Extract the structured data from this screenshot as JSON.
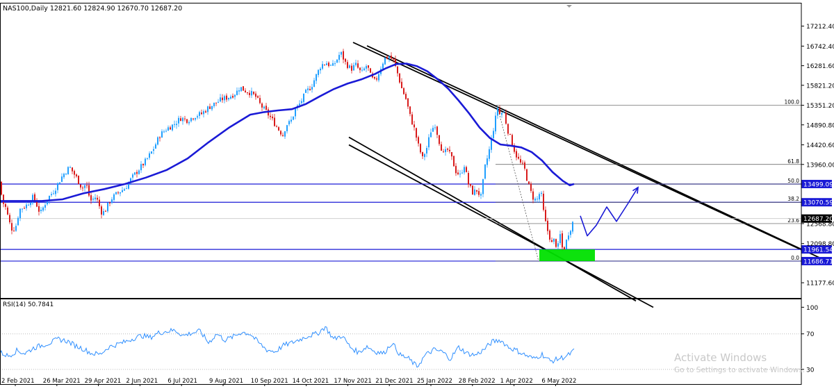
{
  "header": {
    "symbol_line": "NAS100,Daily  12821.60 12824.90 12670.70 12687.20"
  },
  "rsi_header": "RSI(14) 50.7841",
  "watermark": {
    "title": "Activate Windows",
    "subtitle": "Go to Settings to activate Windows."
  },
  "colors": {
    "background": "#ffffff",
    "candle_up": "#1f9fff",
    "candle_down": "#d81b1b",
    "moving_average": "#1a1ad6",
    "level_line": "#1a1ad6",
    "fib_line": "#000000",
    "channel": "#000000",
    "projection": "#1a1ad6",
    "support_zone": "#00e000",
    "rsi_line": "#2f8fff",
    "price_label": "#000000",
    "level_label_bg": "#1a1ad6"
  },
  "chart_data": [
    {
      "type": "candlestick",
      "symbol": "NAS100",
      "timeframe": "Daily",
      "ohlc_current": {
        "open": 12821.6,
        "high": 12824.9,
        "low": 12670.7,
        "close": 12687.2
      },
      "ylim": [
        11000,
        17500
      ],
      "y_ticks": [
        17212.4,
        16742.4,
        16281.6,
        15821.2,
        15351.2,
        14890.8,
        14420.6,
        13960.0,
        12568.8,
        12098.8,
        11177.6
      ],
      "x_ticks": [
        "2 Feb 2021",
        "26 Mar 2021",
        "29 Apr 2021",
        "2 Jun 2021",
        "6 Jul 2021",
        "9 Aug 2021",
        "10 Sep 2021",
        "14 Oct 2021",
        "17 Nov 2021",
        "21 Dec 2021",
        "25 Jan 2022",
        "28 Feb 2022",
        "1 Apr 2022",
        "6 May 2022"
      ],
      "price_path": [
        [
          0,
          13550
        ],
        [
          3,
          13100
        ],
        [
          8,
          12950
        ],
        [
          16,
          12450
        ],
        [
          22,
          12450
        ],
        [
          28,
          12900
        ],
        [
          38,
          13000
        ],
        [
          48,
          13200
        ],
        [
          58,
          12800
        ],
        [
          68,
          13150
        ],
        [
          78,
          13350
        ],
        [
          90,
          13700
        ],
        [
          100,
          13900
        ],
        [
          110,
          13650
        ],
        [
          118,
          13400
        ],
        [
          124,
          13500
        ],
        [
          130,
          13100
        ],
        [
          138,
          13200
        ],
        [
          147,
          12800
        ],
        [
          152,
          12900
        ],
        [
          160,
          13150
        ],
        [
          170,
          13300
        ],
        [
          180,
          13400
        ],
        [
          190,
          13650
        ],
        [
          200,
          13850
        ],
        [
          210,
          14050
        ],
        [
          220,
          14300
        ],
        [
          230,
          14650
        ],
        [
          240,
          14800
        ],
        [
          250,
          14900
        ],
        [
          260,
          15050
        ],
        [
          270,
          15000
        ],
        [
          280,
          15100
        ],
        [
          290,
          15150
        ],
        [
          300,
          15300
        ],
        [
          310,
          15400
        ],
        [
          320,
          15500
        ],
        [
          330,
          15550
        ],
        [
          340,
          15650
        ],
        [
          345,
          15780
        ],
        [
          352,
          15700
        ],
        [
          360,
          15650
        ],
        [
          368,
          15550
        ],
        [
          375,
          15350
        ],
        [
          383,
          15200
        ],
        [
          392,
          15000
        ],
        [
          400,
          14800
        ],
        [
          407,
          14650
        ],
        [
          412,
          14900
        ],
        [
          418,
          14950
        ],
        [
          425,
          15250
        ],
        [
          432,
          15400
        ],
        [
          440,
          15650
        ],
        [
          448,
          15800
        ],
        [
          455,
          16050
        ],
        [
          462,
          16300
        ],
        [
          470,
          16350
        ],
        [
          478,
          16250
        ],
        [
          484,
          16400
        ],
        [
          490,
          16600
        ],
        [
          497,
          16350
        ],
        [
          505,
          16200
        ],
        [
          512,
          16300
        ],
        [
          520,
          16100
        ],
        [
          528,
          16300
        ],
        [
          534,
          16000
        ],
        [
          540,
          15900
        ],
        [
          547,
          16200
        ],
        [
          553,
          16450
        ],
        [
          560,
          16500
        ],
        [
          566,
          16400
        ],
        [
          572,
          16100
        ],
        [
          578,
          15750
        ],
        [
          584,
          15500
        ],
        [
          590,
          15100
        ],
        [
          596,
          14800
        ],
        [
          602,
          14400
        ],
        [
          608,
          14100
        ],
        [
          614,
          14350
        ],
        [
          620,
          14750
        ],
        [
          626,
          14900
        ],
        [
          632,
          14500
        ],
        [
          638,
          14200
        ],
        [
          644,
          14300
        ],
        [
          650,
          14100
        ],
        [
          656,
          13800
        ],
        [
          662,
          13700
        ],
        [
          668,
          13950
        ],
        [
          674,
          13500
        ],
        [
          680,
          13300
        ],
        [
          686,
          13350
        ],
        [
          692,
          13200
        ],
        [
          698,
          13900
        ],
        [
          704,
          14300
        ],
        [
          710,
          14800
        ],
        [
          716,
          15300
        ],
        [
          720,
          15100
        ],
        [
          724,
          15250
        ],
        [
          730,
          14800
        ],
        [
          736,
          14500
        ],
        [
          742,
          14200
        ],
        [
          748,
          14000
        ],
        [
          754,
          13900
        ],
        [
          760,
          13500
        ],
        [
          766,
          13200
        ],
        [
          772,
          13100
        ],
        [
          778,
          13350
        ],
        [
          782,
          12850
        ],
        [
          786,
          12500
        ],
        [
          790,
          12300
        ],
        [
          794,
          12100
        ],
        [
          798,
          12200
        ],
        [
          802,
          11950
        ],
        [
          806,
          12300
        ],
        [
          810,
          11900
        ],
        [
          814,
          12100
        ],
        [
          818,
          12350
        ],
        [
          822,
          12500
        ],
        [
          826,
          12687
        ]
      ],
      "moving_average_path": [
        [
          0,
          13100
        ],
        [
          30,
          13100
        ],
        [
          60,
          13100
        ],
        [
          90,
          13140
        ],
        [
          120,
          13280
        ],
        [
          150,
          13380
        ],
        [
          180,
          13500
        ],
        [
          210,
          13650
        ],
        [
          240,
          13830
        ],
        [
          270,
          14100
        ],
        [
          300,
          14480
        ],
        [
          330,
          14830
        ],
        [
          360,
          15130
        ],
        [
          380,
          15190
        ],
        [
          400,
          15230
        ],
        [
          420,
          15260
        ],
        [
          440,
          15380
        ],
        [
          460,
          15560
        ],
        [
          480,
          15730
        ],
        [
          500,
          15860
        ],
        [
          520,
          15960
        ],
        [
          540,
          16090
        ],
        [
          555,
          16220
        ],
        [
          570,
          16320
        ],
        [
          585,
          16330
        ],
        [
          600,
          16270
        ],
        [
          615,
          16150
        ],
        [
          630,
          15960
        ],
        [
          645,
          15740
        ],
        [
          660,
          15460
        ],
        [
          675,
          15160
        ],
        [
          690,
          14830
        ],
        [
          705,
          14580
        ],
        [
          720,
          14430
        ],
        [
          735,
          14400
        ],
        [
          750,
          14360
        ],
        [
          765,
          14250
        ],
        [
          780,
          14050
        ],
        [
          795,
          13780
        ],
        [
          810,
          13570
        ],
        [
          820,
          13470
        ],
        [
          826,
          13500
        ]
      ],
      "horizontal_levels": [
        {
          "label": "13499.09",
          "value": 13499.09
        },
        {
          "label": "13070.59",
          "value": 13070.59
        },
        {
          "label": "11961.54",
          "value": 11961.54
        },
        {
          "label": "11686.71",
          "value": 11686.71
        }
      ],
      "fib_levels": [
        {
          "label": "100.0",
          "value": 15351.2
        },
        {
          "label": "61.8",
          "value": 13960.0
        },
        {
          "label": "50.0",
          "value": 13499.09
        },
        {
          "label": "38.2",
          "value": 13070.59
        },
        {
          "label": "23.6",
          "value": 12568.8
        },
        {
          "label": "0.0",
          "value": 11686.71
        }
      ],
      "current_price_label": "12687.20",
      "projection_path": [
        [
          835,
          12750
        ],
        [
          845,
          12280
        ],
        [
          858,
          12530
        ],
        [
          873,
          12960
        ],
        [
          887,
          12620
        ],
        [
          902,
          13000
        ],
        [
          918,
          13420
        ]
      ],
      "channels": [
        {
          "name": "upper",
          "line1": [
            [
              508,
              16830
            ],
            [
              1160,
              11900
            ]
          ],
          "line2": [
            [
              528,
              16750
            ],
            [
              1180,
              11760
            ]
          ]
        },
        {
          "name": "lower",
          "line1": [
            [
              502,
              14600
            ],
            [
              915,
              10750
            ]
          ],
          "line2": [
            [
              502,
              14420
            ],
            [
              940,
              10600
            ]
          ]
        }
      ],
      "support_zone": {
        "x0": 776,
        "x1": 856,
        "top": 11961.54,
        "bottom": 11686.71
      }
    },
    {
      "type": "line",
      "name": "RSI(14)",
      "current": 50.7841,
      "ylim": [
        15,
        105
      ],
      "y_ticks": [
        100,
        70,
        30
      ],
      "reference_levels": [
        70,
        30
      ],
      "x": [
        0,
        12,
        24,
        36,
        48,
        60,
        72,
        84,
        96,
        108,
        120,
        132,
        144,
        156,
        168,
        180,
        192,
        204,
        216,
        228,
        240,
        252,
        264,
        276,
        288,
        300,
        312,
        324,
        336,
        348,
        360,
        372,
        384,
        396,
        408,
        420,
        432,
        444,
        456,
        468,
        480,
        492,
        504,
        516,
        528,
        540,
        552,
        564,
        576,
        588,
        600,
        612,
        624,
        636,
        648,
        660,
        672,
        684,
        696,
        708,
        720,
        732,
        744,
        756,
        768,
        780,
        792,
        804,
        816,
        826
      ],
      "values": [
        49,
        45,
        51,
        48,
        54,
        57,
        60,
        64,
        62,
        57,
        53,
        48,
        47,
        55,
        58,
        61,
        65,
        68,
        66,
        71,
        73,
        74,
        68,
        71,
        73,
        60,
        70,
        63,
        67,
        72,
        70,
        60,
        52,
        50,
        57,
        60,
        64,
        68,
        70,
        78,
        64,
        68,
        55,
        49,
        56,
        50,
        48,
        60,
        46,
        42,
        33,
        46,
        52,
        50,
        42,
        55,
        48,
        46,
        52,
        61,
        63,
        55,
        51,
        46,
        42,
        47,
        39,
        42,
        45,
        51
      ]
    }
  ]
}
